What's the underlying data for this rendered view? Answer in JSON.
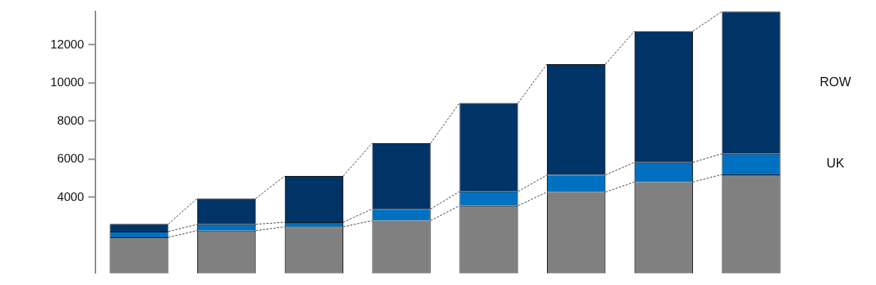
{
  "chart_data": {
    "type": "bar",
    "stacked": true,
    "categories": [
      null,
      null,
      null,
      null,
      null,
      null,
      null,
      null
    ],
    "series": [
      {
        "color": "#808080",
        "values": [
          1900,
          2250,
          2450,
          2775,
          3555,
          4275,
          4800,
          5195
        ]
      },
      {
        "name": "UK",
        "color": "#0070c0",
        "values": [
          300,
          330,
          240,
          610,
          750,
          895,
          1035,
          1090
        ]
      },
      {
        "name": "ROW",
        "color": "#003366",
        "values": [
          400,
          1360,
          2425,
          3455,
          4650,
          5820,
          6885,
          7465
        ]
      }
    ],
    "ylim": [
      0,
      13750
    ],
    "yticks": [
      4000,
      6000,
      8000,
      10000,
      12000
    ],
    "grid": false,
    "tick_labels": "y"
  }
}
